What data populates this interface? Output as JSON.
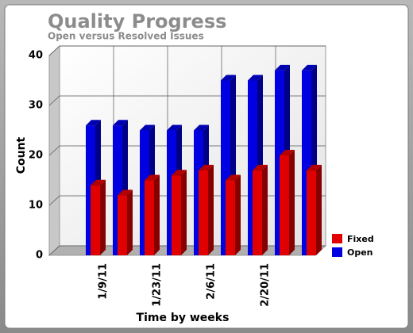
{
  "chart_data": {
    "type": "bar3d",
    "title": "Quality Progress",
    "subtitle": "Open versus Resolved Issues",
    "x_label": "Time by weeks",
    "y_label": "Count",
    "categories": [
      "1/9/11",
      null,
      "1/23/11",
      null,
      "2/6/11",
      null,
      "2/20/11",
      null,
      null
    ],
    "series": [
      {
        "name": "Fixed",
        "color": "#e00000",
        "values": [
          14,
          12,
          15,
          16,
          17,
          15,
          17,
          20,
          17
        ]
      },
      {
        "name": "Open",
        "color": "#0000e0",
        "values": [
          26,
          26,
          25,
          25,
          25,
          35,
          35,
          37,
          37
        ]
      }
    ],
    "ylim": [
      0,
      40
    ],
    "yticks": [
      0,
      10,
      20,
      30,
      40
    ],
    "grid": true,
    "legend": "bottom-right"
  }
}
